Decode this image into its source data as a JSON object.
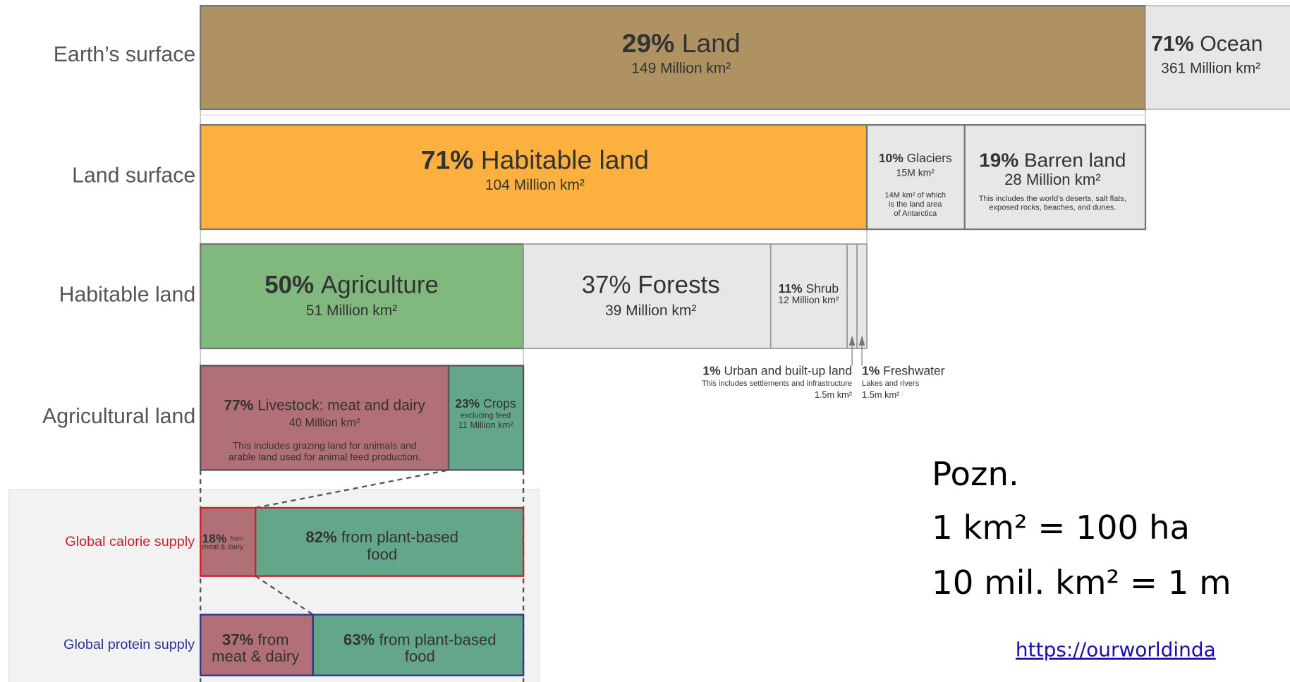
{
  "rows": [
    {
      "label": "Earth’s surface",
      "segments": [
        {
          "pct": "29%",
          "name": "Land",
          "area": "149 Million km²"
        },
        {
          "pct": "71%",
          "name": "Ocean",
          "area": "361 Million km²"
        }
      ]
    },
    {
      "label": "Land surface",
      "segments": [
        {
          "pct": "71%",
          "name": "Habitable land",
          "area": "104 Million km²"
        },
        {
          "pct": "10%",
          "name": "Glaciers",
          "area": "15M km²",
          "note": [
            "14M km² of which",
            "is the land area",
            "of Antarctica"
          ]
        },
        {
          "pct": "19%",
          "name": "Barren land",
          "area": "28 Million km²",
          "note": [
            "This includes the world’s deserts, salt flats,",
            "exposed rocks, beaches, and dunes."
          ]
        }
      ]
    },
    {
      "label": "Habitable land",
      "segments": [
        {
          "pct": "50%",
          "name": "Agriculture",
          "area": "51 Million km²"
        },
        {
          "pct": "37%",
          "name": "Forests",
          "area": "39 Million km²"
        },
        {
          "pct": "11%",
          "name": "Shrub",
          "area": "12 Million km²"
        },
        {
          "pct": "1%",
          "name": "Urban and built-up land",
          "area": "1.5m km²",
          "note": [
            "This includes settlements and infrastructure"
          ]
        },
        {
          "pct": "1%",
          "name": "Freshwater",
          "area": "1.5m km²",
          "note": [
            "Lakes and rivers"
          ]
        }
      ]
    },
    {
      "label": "Agricultural land",
      "segments": [
        {
          "pct": "77%",
          "name": "Livestock: meat and dairy",
          "area": "40 Million km²",
          "note": [
            "This includes grazing land for animals and",
            "arable land used for animal feed production."
          ]
        },
        {
          "pct": "23%",
          "name": "Crops",
          "area": "11 Million km²",
          "note": [
            "excluding feed"
          ]
        }
      ]
    }
  ],
  "supply": [
    {
      "label": "Global calorie supply",
      "segments": [
        {
          "pct": "18%",
          "name": [
            "from",
            "meat & dairy"
          ]
        },
        {
          "pct": "82%",
          "name": [
            "from plant-based",
            "food"
          ]
        }
      ]
    },
    {
      "label": "Global protein supply",
      "segments": [
        {
          "pct": "37%",
          "name": [
            "from",
            "meat & dairy"
          ]
        },
        {
          "pct": "63%",
          "name": [
            "from plant-based",
            "food"
          ]
        }
      ]
    }
  ],
  "note": {
    "title": "Pozn.",
    "lines": [
      "1 km² = 100 ha",
      "10 mil. km² = 1 m"
    ],
    "link": "https://ourworldinda"
  }
}
